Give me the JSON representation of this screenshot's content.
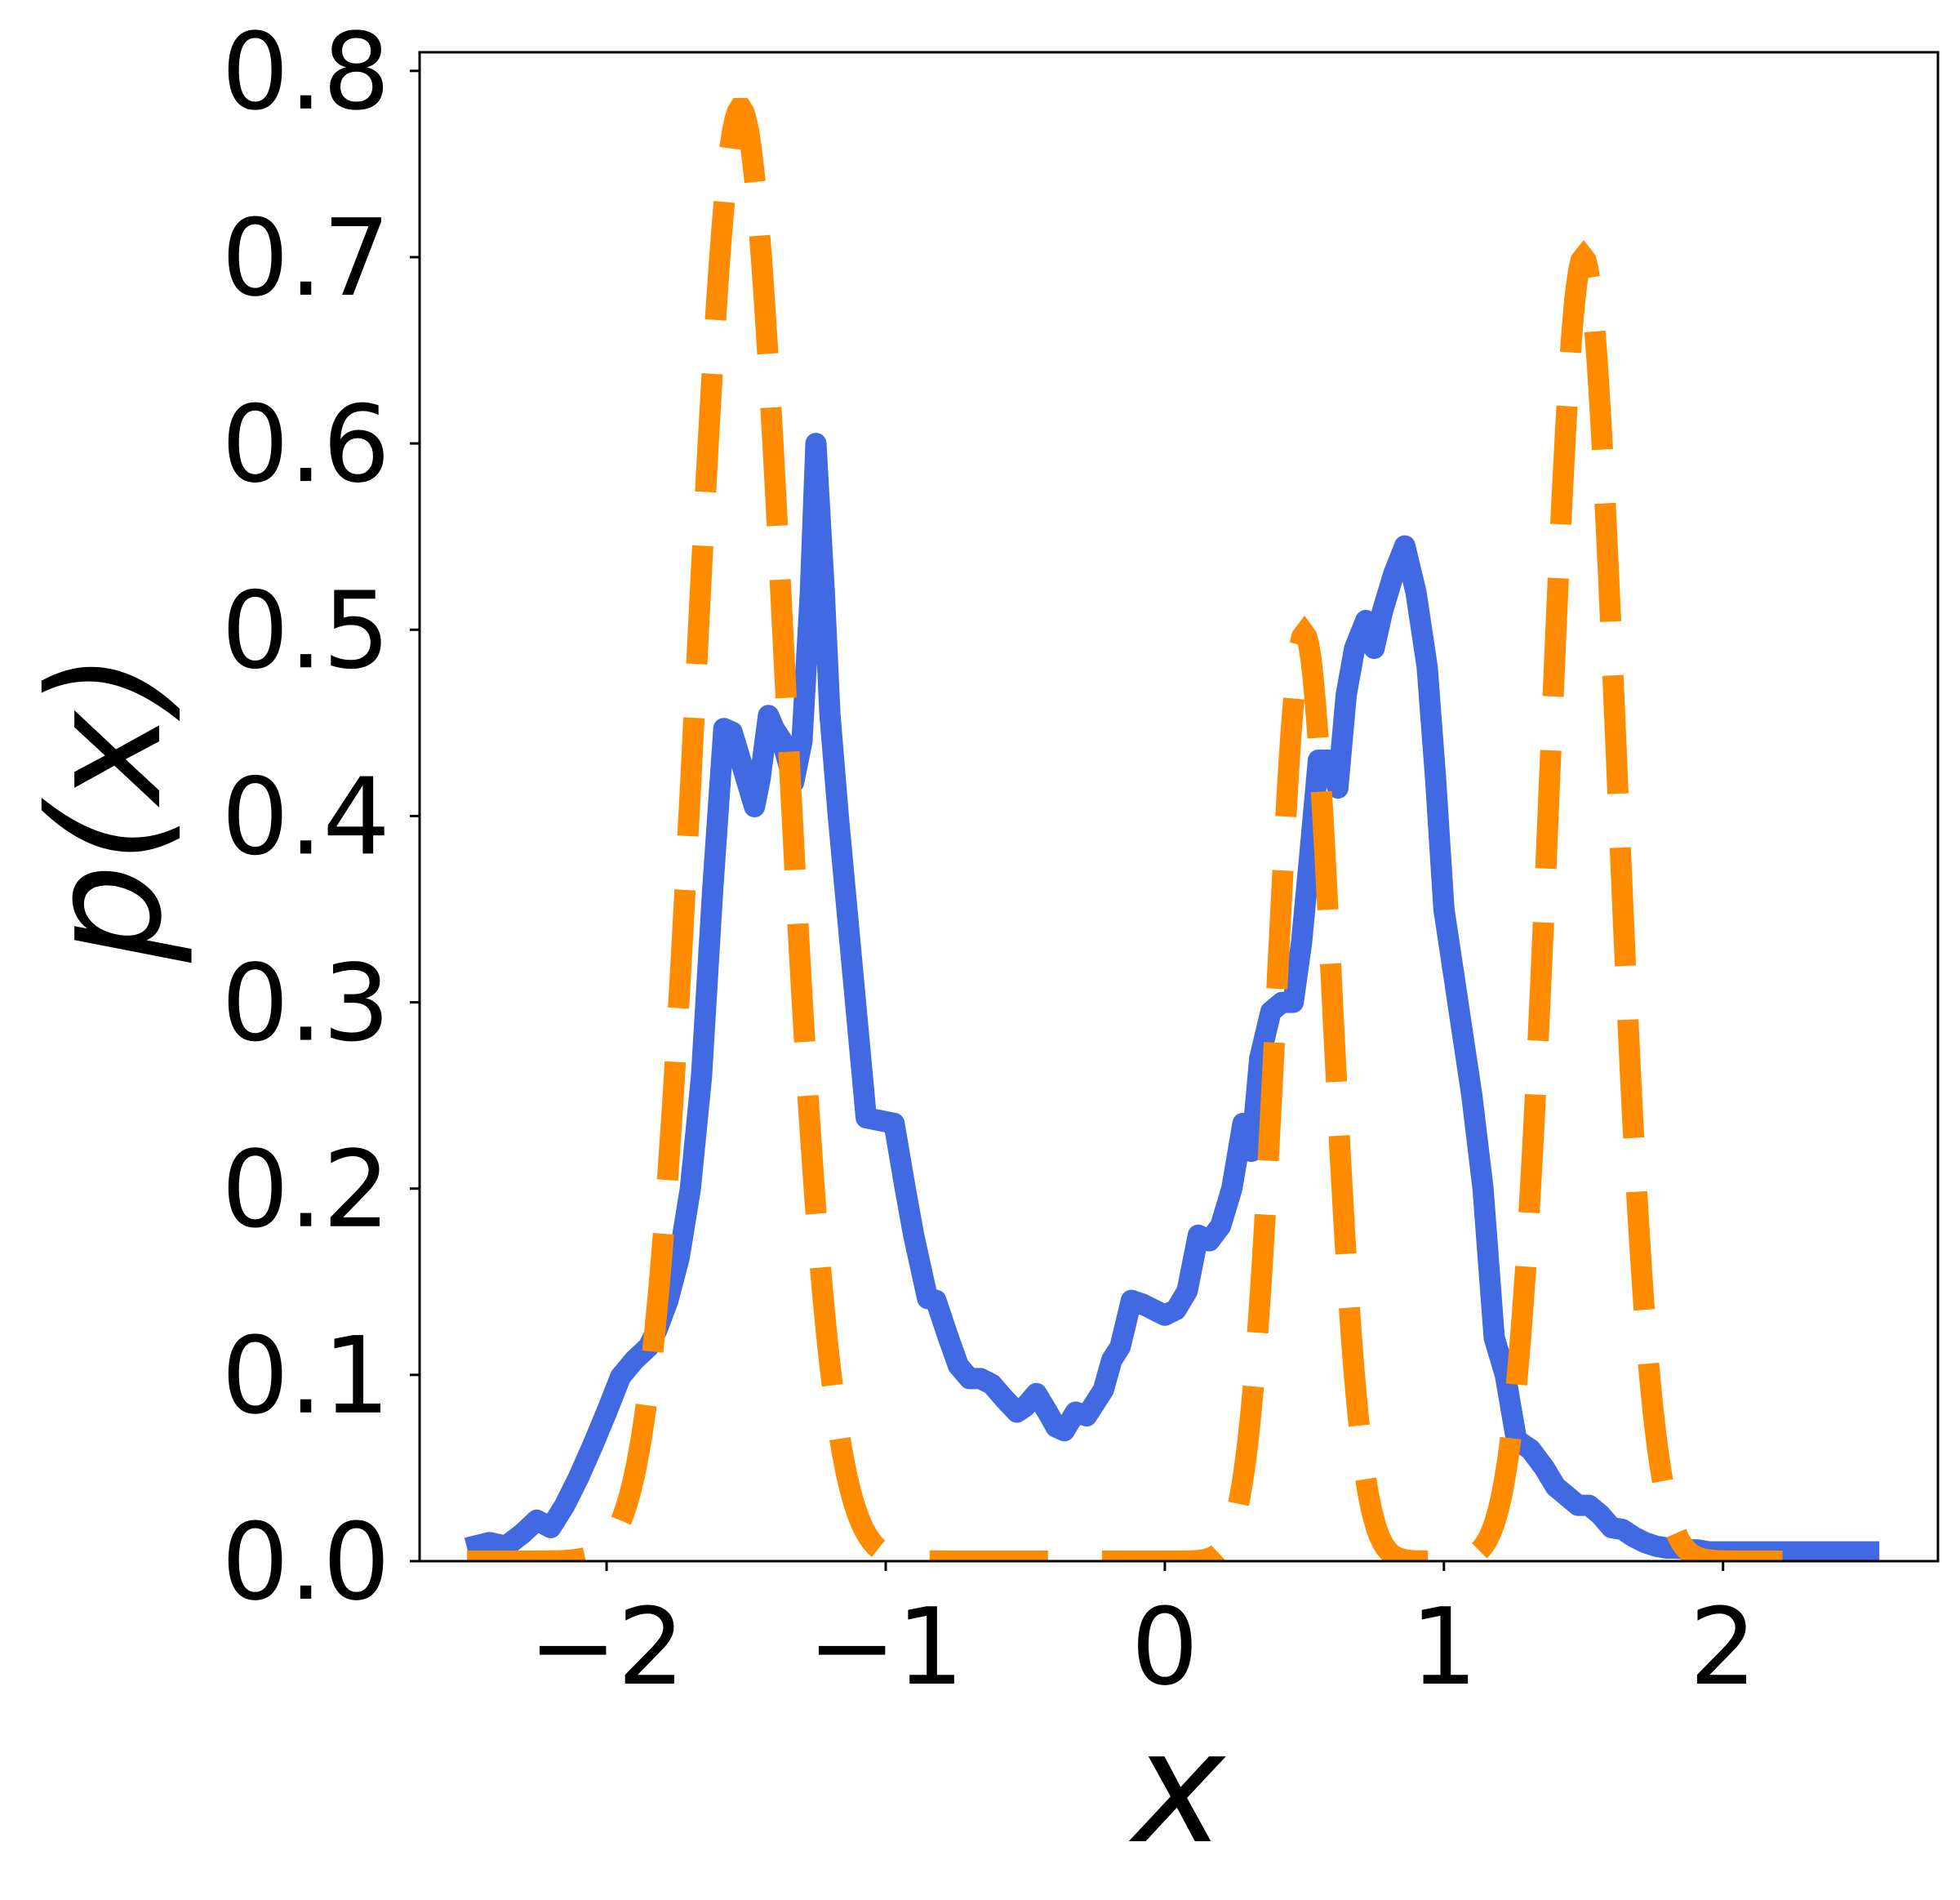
{
  "chart_data": {
    "type": "line",
    "title": "",
    "xlabel": "x",
    "ylabel": "p(x)",
    "xlim": [
      -2.67,
      2.77
    ],
    "ylim": [
      0,
      0.81
    ],
    "xticks": [
      -2,
      -1,
      0,
      1,
      2
    ],
    "xtick_labels": [
      "−2",
      "−1",
      "0",
      "1",
      "2"
    ],
    "yticks": [
      0,
      0.1,
      0.2,
      0.3,
      0.4,
      0.5,
      0.6,
      0.7,
      0.8
    ],
    "ytick_labels": [
      "0.0",
      "0.1",
      "0.2",
      "0.3",
      "0.4",
      "0.5",
      "0.6",
      "0.7",
      "0.8"
    ],
    "grid": false,
    "legend": "none",
    "series": [
      {
        "style": "solid",
        "color": "#4169E1",
        "x": [
          -2.5,
          -2.42,
          -2.36,
          -2.3,
          -2.25,
          -2.2,
          -2.15,
          -2.1,
          -2.05,
          -2.0,
          -1.95,
          -1.9,
          -1.85,
          -1.82,
          -1.78,
          -1.74,
          -1.7,
          -1.66,
          -1.62,
          -1.58,
          -1.55,
          -1.5,
          -1.47,
          -1.45,
          -1.42,
          -1.4,
          -1.37,
          -1.33,
          -1.3,
          -1.27,
          -1.25,
          -1.22,
          -1.2,
          -1.17,
          -1.07,
          -0.97,
          -0.93,
          -0.9,
          -0.85,
          -0.82,
          -0.78,
          -0.74,
          -0.7,
          -0.66,
          -0.62,
          -0.58,
          -0.53,
          -0.5,
          -0.46,
          -0.42,
          -0.39,
          -0.36,
          -0.32,
          -0.28,
          -0.25,
          -0.22,
          -0.19,
          -0.16,
          -0.12,
          -0.08,
          -0.04,
          0.0,
          0.04,
          0.08,
          0.12,
          0.16,
          0.2,
          0.24,
          0.28,
          0.31,
          0.34,
          0.38,
          0.42,
          0.46,
          0.49,
          0.52,
          0.55,
          0.59,
          0.62,
          0.65,
          0.68,
          0.72,
          0.75,
          0.78,
          0.82,
          0.86,
          0.9,
          0.94,
          0.97,
          1.0,
          1.03,
          1.06,
          1.1,
          1.14,
          1.18,
          1.22,
          1.26,
          1.31,
          1.36,
          1.4,
          1.44,
          1.48,
          1.52,
          1.56,
          1.6,
          1.64,
          1.68,
          1.72,
          1.76,
          1.8,
          1.84,
          1.88,
          1.91,
          1.95,
          2.0,
          2.05,
          2.1,
          2.15,
          2.2,
          2.25,
          2.3,
          2.35,
          2.4,
          2.45,
          2.5,
          2.56
        ],
        "y": [
          0.007,
          0.01,
          0.008,
          0.015,
          0.022,
          0.018,
          0.03,
          0.045,
          0.062,
          0.08,
          0.099,
          0.108,
          0.115,
          0.124,
          0.14,
          0.163,
          0.2,
          0.26,
          0.36,
          0.447,
          0.445,
          0.42,
          0.405,
          0.42,
          0.454,
          0.447,
          0.44,
          0.418,
          0.44,
          0.52,
          0.6,
          0.52,
          0.455,
          0.4,
          0.238,
          0.235,
          0.2,
          0.175,
          0.141,
          0.14,
          0.122,
          0.105,
          0.098,
          0.098,
          0.095,
          0.088,
          0.08,
          0.083,
          0.09,
          0.08,
          0.072,
          0.07,
          0.08,
          0.078,
          0.085,
          0.092,
          0.108,
          0.115,
          0.14,
          0.138,
          0.135,
          0.132,
          0.135,
          0.145,
          0.175,
          0.172,
          0.18,
          0.2,
          0.235,
          0.22,
          0.27,
          0.295,
          0.3,
          0.3,
          0.332,
          0.38,
          0.43,
          0.43,
          0.415,
          0.465,
          0.49,
          0.505,
          0.49,
          0.51,
          0.53,
          0.545,
          0.52,
          0.48,
          0.42,
          0.35,
          0.32,
          0.29,
          0.25,
          0.2,
          0.12,
          0.1,
          0.065,
          0.06,
          0.05,
          0.04,
          0.035,
          0.03,
          0.03,
          0.025,
          0.018,
          0.017,
          0.013,
          0.01,
          0.008,
          0.007,
          0.007,
          0.006,
          0.006,
          0.005,
          0.005,
          0.005,
          0.005,
          0.005,
          0.005,
          0.005,
          0.005,
          0.005,
          0.005,
          0.005,
          0.005,
          0.005
        ]
      },
      {
        "style": "dashed",
        "color": "#FF8C00",
        "components": [
          {
            "mu": -1.52,
            "sigma": 0.16,
            "height": 0.78
          },
          {
            "mu": 0.5,
            "sigma": 0.1,
            "height": 0.498
          },
          {
            "mu": 1.5,
            "sigma": 0.12,
            "height": 0.7
          }
        ],
        "x_range": [
          -2.5,
          2.3
        ]
      }
    ]
  }
}
